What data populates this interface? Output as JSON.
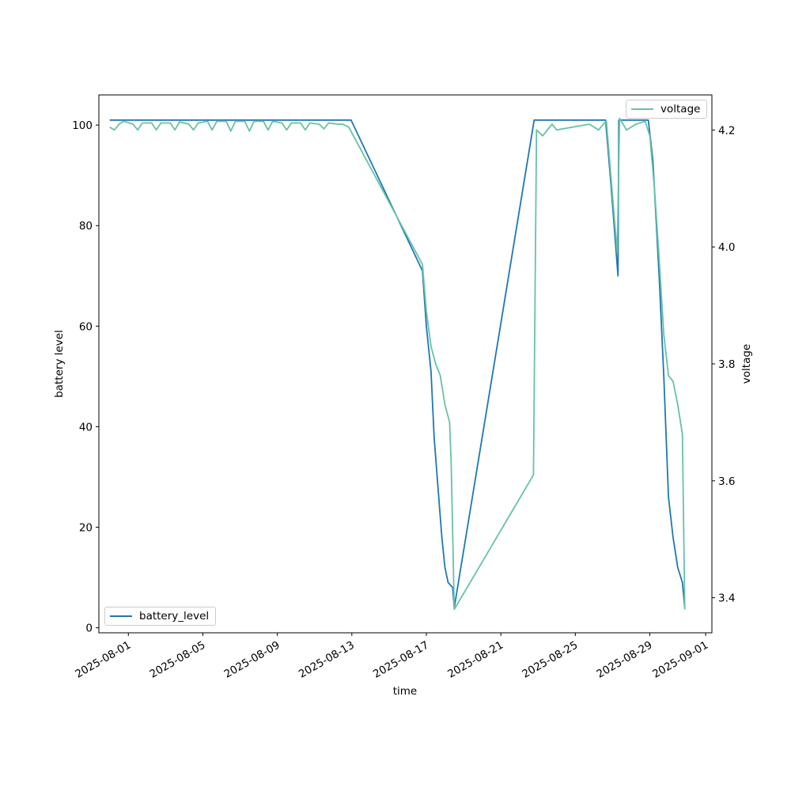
{
  "chart_data": {
    "type": "line",
    "title": "",
    "xlabel": "time",
    "ylabel_left": "battery level",
    "ylabel_right": "voltage",
    "x_ticks": [
      "2025-08-01",
      "2025-08-05",
      "2025-08-09",
      "2025-08-13",
      "2025-08-17",
      "2025-08-21",
      "2025-08-25",
      "2025-08-29",
      "2025-09-01"
    ],
    "y_left_ticks": [
      "0",
      "20",
      "40",
      "60",
      "80",
      "100"
    ],
    "y_right_ticks": [
      "3.4",
      "3.6",
      "3.8",
      "4.0",
      "4.2"
    ],
    "x_range": [
      "2025-07-30T10:00",
      "2025-09-01T08:00"
    ],
    "y_left_range": [
      -1,
      106
    ],
    "y_right_range": [
      3.34,
      4.26
    ],
    "grid": false,
    "series": [
      {
        "name": "battery_level",
        "axis": "left",
        "color": "#1f77b4",
        "legend_position": "lower-left",
        "points": [
          [
            "2025-07-31T00:00",
            101
          ],
          [
            "2025-08-12T23:00",
            101
          ],
          [
            "2025-08-16T19:00",
            71
          ],
          [
            "2025-08-17T00:00",
            60
          ],
          [
            "2025-08-17T06:00",
            51
          ],
          [
            "2025-08-17T10:00",
            38
          ],
          [
            "2025-08-17T14:00",
            30
          ],
          [
            "2025-08-17T20:00",
            18
          ],
          [
            "2025-08-18T00:00",
            12
          ],
          [
            "2025-08-18T04:00",
            9
          ],
          [
            "2025-08-18T10:00",
            8
          ],
          [
            "2025-08-18T12:00",
            4
          ],
          [
            "2025-08-22T19:00",
            101
          ],
          [
            "2025-08-26T15:00",
            101
          ],
          [
            "2025-08-26T22:00",
            88
          ],
          [
            "2025-08-27T06:00",
            72
          ],
          [
            "2025-08-27T07:00",
            70
          ],
          [
            "2025-08-27T08:00",
            101
          ],
          [
            "2025-08-28T22:00",
            101
          ],
          [
            "2025-08-29T04:00",
            93
          ],
          [
            "2025-08-29T12:00",
            70
          ],
          [
            "2025-08-29T18:00",
            50
          ],
          [
            "2025-08-30T00:00",
            26
          ],
          [
            "2025-08-30T06:00",
            18
          ],
          [
            "2025-08-30T12:00",
            12
          ],
          [
            "2025-08-30T18:00",
            9
          ],
          [
            "2025-08-30T21:00",
            4
          ]
        ]
      },
      {
        "name": "voltage",
        "axis": "right",
        "color": "#66c2a5",
        "legend_position": "upper-right",
        "points": [
          [
            "2025-07-31T00:00",
            4.205
          ],
          [
            "2025-07-31T06:00",
            4.2
          ],
          [
            "2025-07-31T12:00",
            4.21
          ],
          [
            "2025-07-31T18:00",
            4.215
          ],
          [
            "2025-08-01T06:00",
            4.21
          ],
          [
            "2025-08-01T12:00",
            4.2
          ],
          [
            "2025-08-01T18:00",
            4.212
          ],
          [
            "2025-08-02T06:00",
            4.212
          ],
          [
            "2025-08-02T12:00",
            4.2
          ],
          [
            "2025-08-02T18:00",
            4.212
          ],
          [
            "2025-08-03T06:00",
            4.212
          ],
          [
            "2025-08-03T12:00",
            4.2
          ],
          [
            "2025-08-03T18:00",
            4.214
          ],
          [
            "2025-08-04T06:00",
            4.21
          ],
          [
            "2025-08-04T12:00",
            4.2
          ],
          [
            "2025-08-04T18:00",
            4.212
          ],
          [
            "2025-08-05T06:00",
            4.215
          ],
          [
            "2025-08-05T12:00",
            4.2
          ],
          [
            "2025-08-05T18:00",
            4.215
          ],
          [
            "2025-08-06T06:00",
            4.215
          ],
          [
            "2025-08-06T12:00",
            4.198
          ],
          [
            "2025-08-06T18:00",
            4.215
          ],
          [
            "2025-08-07T06:00",
            4.215
          ],
          [
            "2025-08-07T12:00",
            4.198
          ],
          [
            "2025-08-07T18:00",
            4.215
          ],
          [
            "2025-08-08T06:00",
            4.215
          ],
          [
            "2025-08-08T12:00",
            4.2
          ],
          [
            "2025-08-08T18:00",
            4.215
          ],
          [
            "2025-08-09T06:00",
            4.212
          ],
          [
            "2025-08-09T12:00",
            4.2
          ],
          [
            "2025-08-09T18:00",
            4.212
          ],
          [
            "2025-08-10T06:00",
            4.212
          ],
          [
            "2025-08-10T12:00",
            4.2
          ],
          [
            "2025-08-10T18:00",
            4.212
          ],
          [
            "2025-08-11T06:00",
            4.21
          ],
          [
            "2025-08-11T12:00",
            4.202
          ],
          [
            "2025-08-11T18:00",
            4.212
          ],
          [
            "2025-08-12T06:00",
            4.21
          ],
          [
            "2025-08-12T12:00",
            4.21
          ],
          [
            "2025-08-12T20:00",
            4.205
          ],
          [
            "2025-08-16T19:00",
            3.97
          ],
          [
            "2025-08-17T00:00",
            3.89
          ],
          [
            "2025-08-17T06:00",
            3.83
          ],
          [
            "2025-08-17T12:00",
            3.8
          ],
          [
            "2025-08-17T18:00",
            3.78
          ],
          [
            "2025-08-18T00:00",
            3.73
          ],
          [
            "2025-08-18T06:00",
            3.7
          ],
          [
            "2025-08-18T08:00",
            3.63
          ],
          [
            "2025-08-18T12:00",
            3.38
          ],
          [
            "2025-08-22T18:00",
            3.61
          ],
          [
            "2025-08-22T22:00",
            4.2
          ],
          [
            "2025-08-23T06:00",
            4.19
          ],
          [
            "2025-08-23T12:00",
            4.2
          ],
          [
            "2025-08-23T18:00",
            4.21
          ],
          [
            "2025-08-24T00:00",
            4.2
          ],
          [
            "2025-08-25T18:00",
            4.21
          ],
          [
            "2025-08-26T06:00",
            4.2
          ],
          [
            "2025-08-26T12:00",
            4.21
          ],
          [
            "2025-08-26T16:00",
            4.215
          ],
          [
            "2025-08-27T06:00",
            3.99
          ],
          [
            "2025-08-27T09:00",
            4.22
          ],
          [
            "2025-08-27T18:00",
            4.2
          ],
          [
            "2025-08-28T06:00",
            4.21
          ],
          [
            "2025-08-28T18:00",
            4.215
          ],
          [
            "2025-08-29T00:00",
            4.19
          ],
          [
            "2025-08-29T06:00",
            4.1
          ],
          [
            "2025-08-29T12:00",
            3.98
          ],
          [
            "2025-08-29T18:00",
            3.85
          ],
          [
            "2025-08-30T00:00",
            3.78
          ],
          [
            "2025-08-30T06:00",
            3.77
          ],
          [
            "2025-08-30T12:00",
            3.73
          ],
          [
            "2025-08-30T18:00",
            3.68
          ],
          [
            "2025-08-30T21:00",
            3.38
          ]
        ]
      }
    ]
  }
}
